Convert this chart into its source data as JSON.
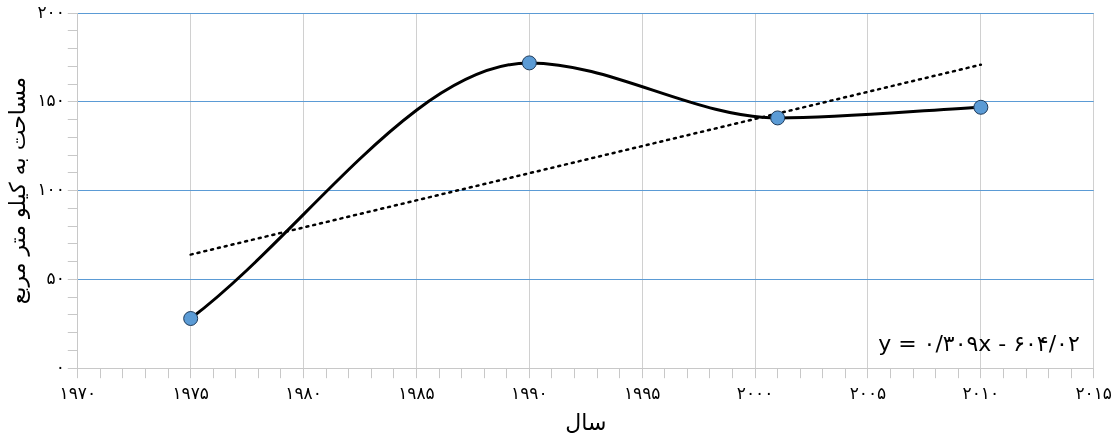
{
  "chart_data": {
    "type": "line",
    "xlabel": "سال",
    "ylabel": "مساحت به کیلو متر مربع",
    "xlim": [
      1970,
      2015
    ],
    "xticks": [
      {
        "value": 1970,
        "label": "۱۹۷۰"
      },
      {
        "value": 1971,
        "label": null
      },
      {
        "value": 1972,
        "label": null
      },
      {
        "value": 1973,
        "label": null
      },
      {
        "value": 1974,
        "label": null
      },
      {
        "value": 1975,
        "label": "۱۹۷۵"
      },
      {
        "value": 1976,
        "label": null
      },
      {
        "value": 1977,
        "label": null
      },
      {
        "value": 1978,
        "label": null
      },
      {
        "value": 1979,
        "label": null
      },
      {
        "value": 1980,
        "label": "۱۹۸۰"
      },
      {
        "value": 1981,
        "label": null
      },
      {
        "value": 1982,
        "label": null
      },
      {
        "value": 1983,
        "label": null
      },
      {
        "value": 1984,
        "label": null
      },
      {
        "value": 1985,
        "label": "۱۹۸۵"
      },
      {
        "value": 1986,
        "label": null
      },
      {
        "value": 1987,
        "label": null
      },
      {
        "value": 1988,
        "label": null
      },
      {
        "value": 1989,
        "label": null
      },
      {
        "value": 1990,
        "label": "۱۹۹۰"
      },
      {
        "value": 1991,
        "label": null
      },
      {
        "value": 1992,
        "label": null
      },
      {
        "value": 1993,
        "label": null
      },
      {
        "value": 1994,
        "label": null
      },
      {
        "value": 1995,
        "label": "۱۹۹۵"
      },
      {
        "value": 1996,
        "label": null
      },
      {
        "value": 1997,
        "label": null
      },
      {
        "value": 1998,
        "label": null
      },
      {
        "value": 1999,
        "label": null
      },
      {
        "value": 2000,
        "label": "۲۰۰۰"
      },
      {
        "value": 2001,
        "label": null
      },
      {
        "value": 2002,
        "label": null
      },
      {
        "value": 2003,
        "label": null
      },
      {
        "value": 2004,
        "label": null
      },
      {
        "value": 2005,
        "label": "۲۰۰۵"
      },
      {
        "value": 2006,
        "label": null
      },
      {
        "value": 2007,
        "label": null
      },
      {
        "value": 2008,
        "label": null
      },
      {
        "value": 2009,
        "label": null
      },
      {
        "value": 2010,
        "label": "۲۰۱۰"
      },
      {
        "value": 2011,
        "label": null
      },
      {
        "value": 2012,
        "label": null
      },
      {
        "value": 2013,
        "label": null
      },
      {
        "value": 2014,
        "label": null
      },
      {
        "value": 2015,
        "label": "۲۰۱۵"
      }
    ],
    "ylim": [
      0,
      200
    ],
    "yticks": [
      {
        "value": 0,
        "label": "۰"
      },
      {
        "value": 10,
        "label": null
      },
      {
        "value": 20,
        "label": null
      },
      {
        "value": 30,
        "label": null
      },
      {
        "value": 40,
        "label": null
      },
      {
        "value": 50,
        "label": "۵۰"
      },
      {
        "value": 60,
        "label": null
      },
      {
        "value": 70,
        "label": null
      },
      {
        "value": 80,
        "label": null
      },
      {
        "value": 90,
        "label": null
      },
      {
        "value": 100,
        "label": "۱۰۰"
      },
      {
        "value": 110,
        "label": null
      },
      {
        "value": 120,
        "label": null
      },
      {
        "value": 130,
        "label": null
      },
      {
        "value": 140,
        "label": null
      },
      {
        "value": 150,
        "label": "۱۵۰"
      },
      {
        "value": 160,
        "label": null
      },
      {
        "value": 170,
        "label": null
      },
      {
        "value": 180,
        "label": null
      },
      {
        "value": 190,
        "label": null
      },
      {
        "value": 200,
        "label": "۲۰۰"
      }
    ],
    "grid": true,
    "series": [
      {
        "color": "#5b9bd5",
        "x": [
          1975,
          1990,
          2001,
          2010
        ],
        "values": [
          28,
          172,
          141,
          147
        ],
        "marker": "circle",
        "line_style": "solid"
      },
      {
        "type": "line",
        "color": "#000000",
        "x": [
          1975,
          2010
        ],
        "values": [
          64,
          171
        ],
        "marker": "none",
        "line_style": "dotted"
      }
    ],
    "annotations": [
      "y = ۰/۳۰۹x - ۶۰۴/۰۲"
    ]
  }
}
